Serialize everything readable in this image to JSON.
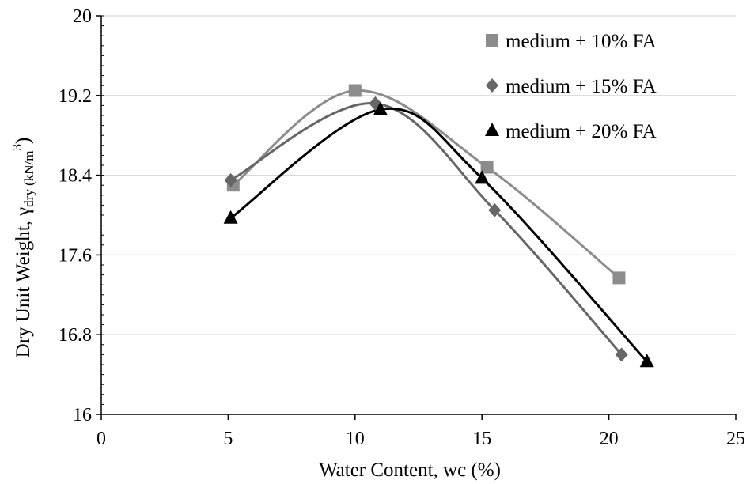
{
  "chart_data": {
    "type": "scatter",
    "xlabel": "Water Content, wc (%)",
    "ylabel": {
      "main": "Dry Unit Weight, γ",
      "subscript": "dry (kN/m",
      "superscript": "3",
      "close": ")"
    },
    "xlim": [
      0,
      25
    ],
    "ylim": [
      16,
      20
    ],
    "xticks": [
      0,
      5,
      10,
      15,
      20,
      25
    ],
    "yticks": [
      16,
      16.8,
      17.6,
      18.4,
      19.2,
      20
    ],
    "xtick_labels": [
      "0",
      "5",
      "10",
      "15",
      "20",
      "25"
    ],
    "ytick_labels": [
      "16",
      "16.8",
      "17.6",
      "18.4",
      "19.2",
      "20"
    ],
    "grid": "horizontal",
    "legend_position": "top-right",
    "series": [
      {
        "name": "medium + 10% FA",
        "marker": "square",
        "color": "#8c8c8c",
        "x": [
          5.2,
          10.0,
          15.2,
          20.4
        ],
        "y": [
          18.3,
          19.25,
          18.48,
          17.37
        ]
      },
      {
        "name": "medium + 15% FA",
        "marker": "diamond",
        "color": "#666666",
        "x": [
          5.1,
          10.8,
          15.5,
          20.5
        ],
        "y": [
          18.35,
          19.12,
          18.05,
          16.6
        ]
      },
      {
        "name": "medium + 20% FA",
        "marker": "triangle",
        "color": "#000000",
        "x": [
          5.1,
          11.0,
          15.0,
          21.5
        ],
        "y": [
          17.97,
          19.06,
          18.37,
          16.53
        ]
      }
    ]
  }
}
